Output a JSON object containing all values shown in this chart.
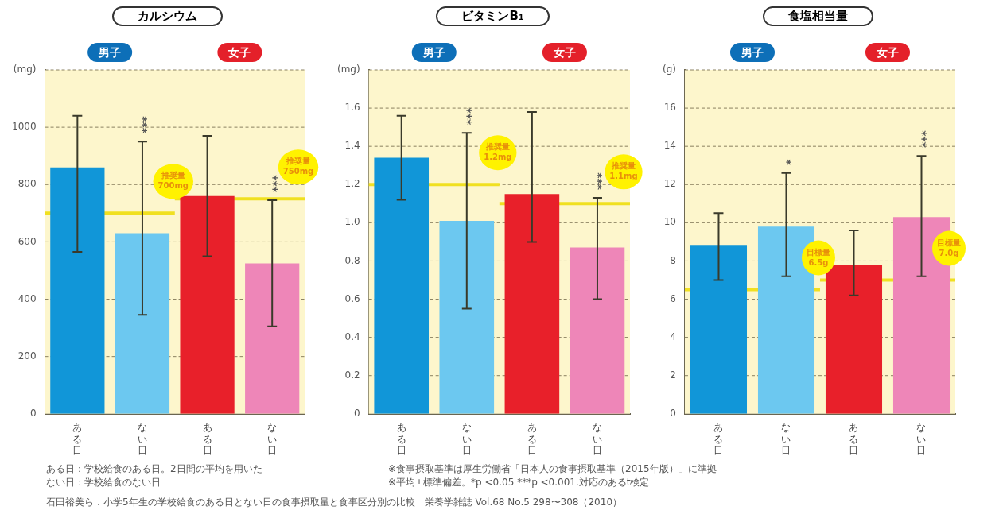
{
  "chart_data": [
    {
      "type": "bar",
      "title": "カルシウム",
      "categories": [
        "ある日",
        "ない日",
        "ある日",
        "ない日"
      ],
      "values": [
        860,
        630,
        760,
        525
      ],
      "colors": [
        "#1196d8",
        "#6cc8f0",
        "#e8202a",
        "#ee86b8"
      ],
      "errors": [
        [
          565,
          1040
        ],
        [
          345,
          950
        ],
        [
          550,
          970
        ],
        [
          305,
          745
        ]
      ],
      "ylim": [
        0,
        1200
      ],
      "yticks": [
        0,
        200,
        400,
        600,
        800,
        1000,
        {
          "value": 1200,
          "label": "(mg)"
        }
      ],
      "grid": "y",
      "ref_lines": [
        {
          "axis": "y",
          "value": 700,
          "label": "推奨量 700mg",
          "color": "#f0e020"
        },
        {
          "axis": "y",
          "value": 750,
          "label": "推奨量 750mg",
          "color": "#f0e020"
        }
      ],
      "annotations": [
        "男子",
        "女子",
        "***",
        "***"
      ]
    },
    {
      "type": "bar",
      "title": "ビタミンB₁",
      "categories": [
        "ある日",
        "ない日",
        "ある日",
        "ない日"
      ],
      "values": [
        1.34,
        1.01,
        1.15,
        0.87
      ],
      "colors": [
        "#1196d8",
        "#6cc8f0",
        "#e8202a",
        "#ee86b8"
      ],
      "errors": [
        [
          1.12,
          1.56
        ],
        [
          0.55,
          1.47
        ],
        [
          0.9,
          1.58
        ],
        [
          0.6,
          1.13
        ]
      ],
      "ylim": [
        0,
        1.8
      ],
      "yticks": [
        0,
        {
          "value": 0.2,
          "label": "0.2"
        },
        {
          "value": 0.4,
          "label": "0.4"
        },
        {
          "value": 0.6,
          "label": "0.6"
        },
        {
          "value": 0.8,
          "label": "0.8"
        },
        {
          "value": 1,
          "label": "1.0"
        },
        {
          "value": 1.2,
          "label": "1.2"
        },
        {
          "value": 1.4,
          "label": "1.4"
        },
        {
          "value": 1.6,
          "label": "1.6"
        },
        {
          "value": 1.8,
          "label": "(mg)"
        }
      ],
      "grid": "y",
      "ref_lines": [
        {
          "axis": "y",
          "value": 1.2,
          "label": "推奨量 1.2mg",
          "color": "#f0e020"
        },
        {
          "axis": "y",
          "value": 1.1,
          "label": "推奨量 1.1mg",
          "color": "#f0e020"
        }
      ],
      "annotations": [
        "男子",
        "女子",
        "***",
        "***"
      ]
    },
    {
      "type": "bar",
      "title": "食塩相当量",
      "categories": [
        "ある日",
        "ない日",
        "ある日",
        "ない日"
      ],
      "values": [
        8.8,
        9.8,
        7.8,
        10.3
      ],
      "colors": [
        "#1196d8",
        "#6cc8f0",
        "#e8202a",
        "#ee86b8"
      ],
      "errors": [
        [
          7,
          10.5
        ],
        [
          7.2,
          12.6
        ],
        [
          6.2,
          9.6
        ],
        [
          7.2,
          13.5
        ]
      ],
      "ylim": [
        0,
        18
      ],
      "yticks": [
        0,
        2,
        4,
        6,
        8,
        10,
        12,
        14,
        16,
        {
          "value": 18,
          "label": "(g)"
        }
      ],
      "grid": "y",
      "ref_lines": [
        {
          "axis": "y",
          "value": 6.5,
          "label": "目標量 6.5g",
          "color": "#f0e020"
        },
        {
          "axis": "y",
          "value": 7,
          "label": "目標量 7.0g",
          "color": "#f0e020"
        }
      ],
      "annotations": [
        "男子",
        "女子",
        "*",
        "***"
      ]
    },
    {
      "type": "other",
      "annotations": [
        "ある日：学校給食のある日。2日間の平均を用いた",
        "※食事摂取基準は厚生労働省「日本人の食事摂取基準（2015年版）」に準拠",
        "ない日：学校給食のない日",
        "※平均±標準偏差。*p <0.05 ***p <0.001.対応のあるt検定",
        "石田裕美ら．小学5年生の学校給食のある日とない日の食事摂取量と食事区分別の比較　栄養学雑誌 Vol.68 No.5 298〜308（2010）"
      ]
    }
  ]
}
